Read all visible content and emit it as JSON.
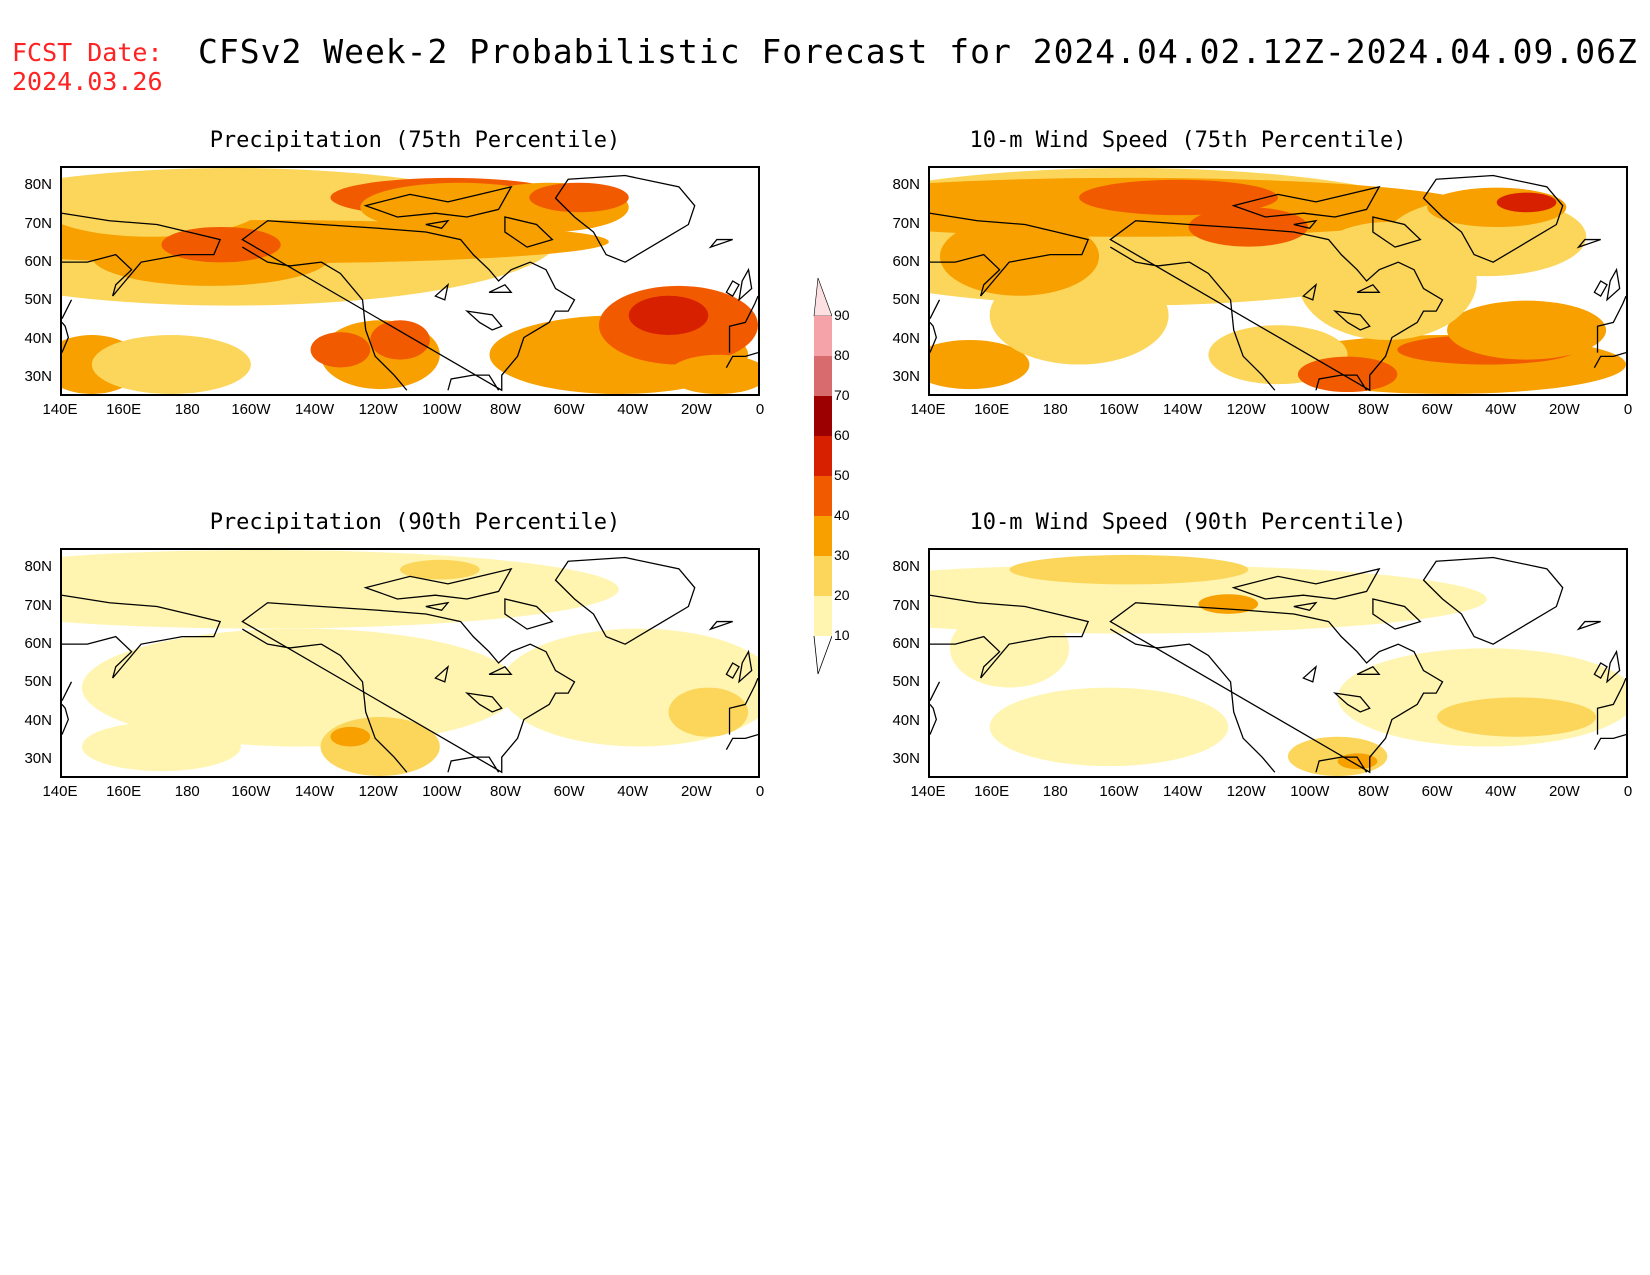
{
  "header": {
    "fcst_label": "FCST Date:",
    "fcst_date": "2024.03.26",
    "title": "CFSv2 Week-2 Probabilistic Forecast for 2024.04.02.12Z-2024.04.09.06Z"
  },
  "axes": {
    "lat_ticks": [
      "80N",
      "70N",
      "60N",
      "50N",
      "40N",
      "30N"
    ],
    "lon_ticks": [
      "140E",
      "160E",
      "180",
      "160W",
      "140W",
      "120W",
      "100W",
      "80W",
      "60W",
      "40W",
      "20W",
      "0"
    ]
  },
  "panels": [
    {
      "title": "Precipitation (75th Percentile)",
      "intensity": "high",
      "variant": "precip"
    },
    {
      "title": "10-m Wind Speed (75th Percentile)",
      "intensity": "high",
      "variant": "wind"
    },
    {
      "title": "Precipitation (90th Percentile)",
      "intensity": "low",
      "variant": "precip"
    },
    {
      "title": "10-m Wind Speed (90th Percentile)",
      "intensity": "low",
      "variant": "wind"
    }
  ],
  "colorbar": {
    "levels": [
      "90",
      "80",
      "70",
      "60",
      "50",
      "40",
      "30",
      "20",
      "10"
    ],
    "colors": [
      "#f5a3a8",
      "#d86b6e",
      "#9c0000",
      "#d62000",
      "#f25a00",
      "#f7a000",
      "#fcd65a",
      "#fff5b0"
    ]
  }
}
